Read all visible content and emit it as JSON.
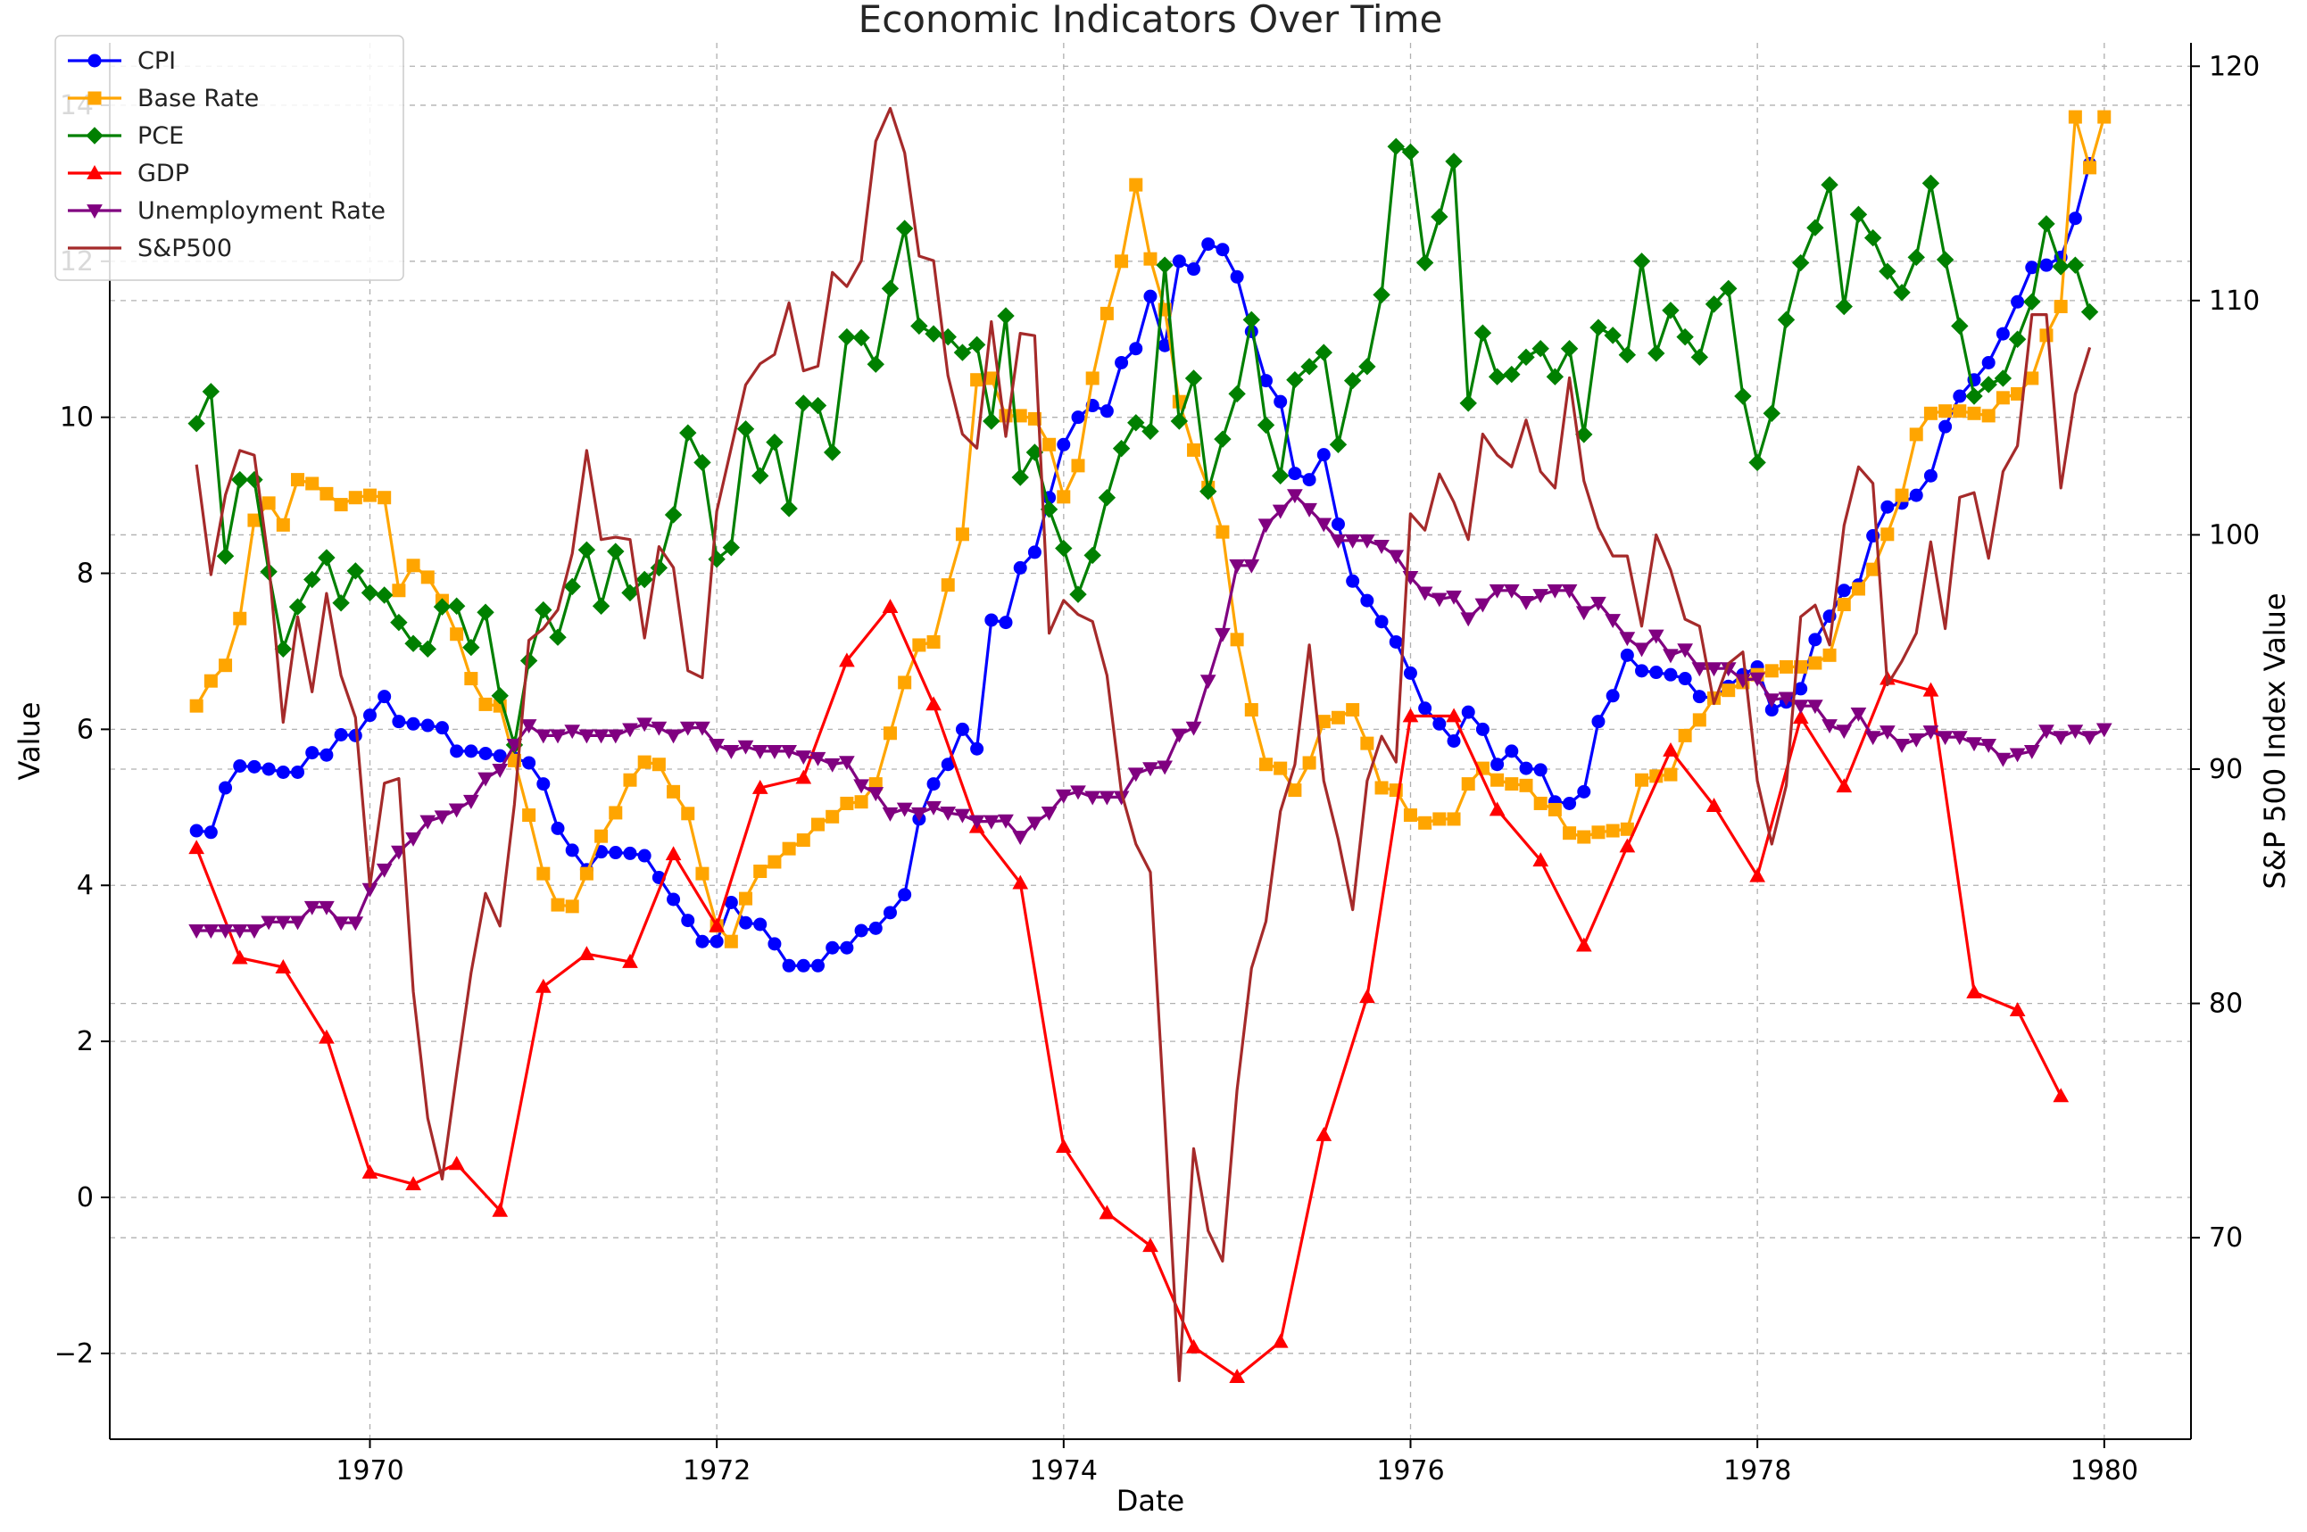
{
  "chart_data": {
    "type": "line",
    "title": "Economic Indicators Over Time",
    "xlabel": "Date",
    "ylabel": "Value",
    "y2label": "S&P 500 Index Value",
    "xlim": [
      1968.5,
      1980.5
    ],
    "ylim": [
      -3.1,
      14.8
    ],
    "y2lim": [
      61.4,
      121
    ],
    "x_ticks": [
      1970,
      1972,
      1974,
      1976,
      1978,
      1980
    ],
    "x_tick_labels": [
      "1970",
      "1972",
      "1974",
      "1976",
      "1978",
      "1980"
    ],
    "y_ticks": [
      -2,
      0,
      2,
      4,
      6,
      8,
      10,
      12,
      14
    ],
    "y_tick_labels": [
      "−2",
      "0",
      "2",
      "4",
      "6",
      "8",
      "10",
      "12",
      "14"
    ],
    "y2_ticks": [
      70,
      80,
      90,
      100,
      110,
      120
    ],
    "y2_tick_labels": [
      "70",
      "80",
      "90",
      "100",
      "110",
      "120"
    ],
    "grid": true,
    "legend_position": "top-left",
    "series": [
      {
        "name": "CPI",
        "color": "#0000ff",
        "marker": "circle",
        "axis": "left",
        "x_start": 1969.0,
        "x_step": 0.08333,
        "values": [
          4.7,
          4.68,
          5.25,
          5.53,
          5.52,
          5.49,
          5.45,
          5.45,
          5.7,
          5.67,
          5.93,
          5.92,
          6.18,
          6.42,
          6.1,
          6.07,
          6.05,
          6.02,
          5.72,
          5.72,
          5.69,
          5.66,
          5.63,
          5.57,
          5.3,
          4.73,
          4.45,
          4.2,
          4.43,
          4.42,
          4.41,
          4.38,
          4.1,
          3.82,
          3.55,
          3.28,
          3.28,
          3.78,
          3.52,
          3.5,
          3.25,
          2.97,
          2.97,
          2.97,
          3.2,
          3.2,
          3.42,
          3.45,
          3.65,
          3.88,
          4.85,
          5.3,
          5.55,
          6.0,
          5.75,
          7.4,
          7.37,
          8.07,
          8.27,
          8.97,
          9.65,
          10.0,
          10.15,
          10.08,
          10.7,
          10.88,
          11.55,
          10.92,
          12.0,
          11.9,
          12.22,
          12.15,
          11.8,
          11.1,
          10.47,
          10.2,
          9.28,
          9.2,
          9.52,
          8.63,
          7.9,
          7.65,
          7.38,
          7.12,
          6.72,
          6.27,
          6.07,
          5.85,
          6.22,
          6.0,
          5.55,
          5.72,
          5.5,
          5.48,
          5.07,
          5.05,
          5.2,
          6.1,
          6.43,
          6.95,
          6.75,
          6.73,
          6.7,
          6.65,
          6.42,
          6.4,
          6.55,
          6.7,
          6.8,
          6.25,
          6.35,
          6.52,
          7.15,
          7.45,
          7.78,
          7.85,
          8.48,
          8.85,
          8.9,
          9.0,
          9.25,
          9.88,
          10.27,
          10.48,
          10.7,
          11.07,
          11.48,
          11.92,
          11.95,
          12.05,
          12.55,
          13.25
        ]
      },
      {
        "name": "Base Rate",
        "color": "#ffa500",
        "marker": "square",
        "axis": "left",
        "x_start": 1969.0,
        "x_step": 0.08333,
        "values": [
          6.3,
          6.62,
          6.82,
          7.42,
          8.68,
          8.9,
          8.62,
          9.2,
          9.15,
          9.02,
          8.88,
          8.97,
          9.0,
          8.97,
          7.78,
          8.1,
          7.95,
          7.65,
          7.22,
          6.65,
          6.32,
          6.3,
          5.6,
          4.9,
          4.15,
          3.75,
          3.73,
          4.15,
          4.63,
          4.93,
          5.35,
          5.58,
          5.55,
          5.2,
          4.92,
          4.15,
          3.48,
          3.28,
          3.83,
          4.18,
          4.3,
          4.47,
          4.58,
          4.78,
          4.88,
          5.05,
          5.07,
          5.3,
          5.95,
          6.6,
          7.08,
          7.12,
          7.85,
          8.5,
          10.48,
          10.5,
          10.02,
          10.02,
          9.98,
          9.65,
          8.98,
          9.38,
          10.5,
          11.33,
          12.0,
          12.98,
          12.03,
          11.38,
          10.2,
          9.58,
          9.1,
          8.53,
          7.15,
          6.25,
          5.55,
          5.5,
          5.22,
          5.57,
          6.1,
          6.15,
          6.25,
          5.82,
          5.25,
          5.22,
          4.9,
          4.8,
          4.85,
          4.85,
          5.3,
          5.5,
          5.35,
          5.3,
          5.28,
          5.05,
          4.97,
          4.67,
          4.62,
          4.68,
          4.7,
          4.72,
          5.35,
          5.4,
          5.42,
          5.92,
          6.12,
          6.4,
          6.5,
          6.6,
          6.7,
          6.75,
          6.8,
          6.8,
          6.85,
          6.95,
          7.6,
          7.8,
          8.05,
          8.5,
          9.0,
          9.78,
          10.05,
          10.08,
          10.08,
          10.05,
          10.02,
          10.25,
          10.3,
          10.5,
          11.05,
          11.42,
          13.85,
          13.2,
          13.85
        ]
      },
      {
        "name": "PCE",
        "color": "#008000",
        "marker": "diamond",
        "axis": "left",
        "x_start": 1969.0,
        "x_step": 0.08333,
        "values": [
          9.92,
          10.33,
          8.22,
          9.2,
          9.2,
          8.02,
          7.03,
          7.57,
          7.92,
          8.2,
          7.62,
          8.03,
          7.75,
          7.72,
          7.37,
          7.1,
          7.03,
          7.57,
          7.58,
          7.05,
          7.5,
          6.43,
          5.8,
          6.88,
          7.53,
          7.18,
          7.83,
          8.3,
          7.58,
          8.28,
          7.75,
          7.92,
          8.07,
          8.75,
          9.8,
          9.42,
          8.18,
          8.33,
          9.85,
          9.25,
          9.68,
          8.83,
          10.18,
          10.15,
          9.55,
          11.03,
          11.02,
          10.68,
          11.65,
          12.42,
          11.17,
          11.07,
          11.03,
          10.83,
          10.93,
          9.95,
          11.3,
          9.23,
          9.55,
          8.82,
          8.32,
          7.73,
          8.23,
          8.97,
          9.6,
          9.93,
          9.82,
          11.95,
          9.95,
          10.5,
          9.05,
          9.72,
          10.3,
          11.25,
          9.9,
          9.25,
          10.48,
          10.65,
          10.83,
          9.65,
          10.47,
          10.65,
          11.57,
          13.47,
          13.4,
          11.98,
          12.57,
          13.28,
          10.18,
          11.08,
          10.52,
          10.55,
          10.77,
          10.88,
          10.52,
          10.88,
          9.78,
          11.15,
          11.05,
          10.8,
          12.0,
          10.82,
          11.37,
          11.03,
          10.77,
          11.45,
          11.65,
          10.27,
          9.42,
          10.05,
          11.25,
          11.98,
          12.43,
          12.98,
          11.42,
          12.6,
          12.3,
          11.87,
          11.6,
          12.05,
          13.0,
          12.02,
          11.17,
          10.27,
          10.42,
          10.5,
          11.0,
          11.48,
          12.48,
          11.93,
          11.95,
          11.35
        ]
      },
      {
        "name": "GDP",
        "color": "#ff0000",
        "marker": "triangle-up",
        "axis": "left",
        "x": [
          1969.0,
          1969.25,
          1969.5,
          1969.75,
          1970.0,
          1970.25,
          1970.5,
          1970.75,
          1971.0,
          1971.25,
          1971.5,
          1971.75,
          1972.0,
          1972.25,
          1972.5,
          1972.75,
          1973.0,
          1973.25,
          1973.5,
          1973.75,
          1974.0,
          1974.25,
          1974.5,
          1974.75,
          1975.0,
          1975.25,
          1975.5,
          1975.75,
          1976.0,
          1976.25,
          1976.5,
          1976.75,
          1977.0,
          1977.25,
          1977.5,
          1977.75,
          1978.0,
          1978.25,
          1978.5,
          1978.75,
          1979.0,
          1979.25,
          1979.5,
          1979.75
        ],
        "y": [
          4.48,
          3.07,
          2.95,
          2.05,
          0.32,
          0.17,
          0.43,
          -0.17,
          2.7,
          3.12,
          3.02,
          4.4,
          3.48,
          5.25,
          5.38,
          6.88,
          7.57,
          6.32,
          4.75,
          4.03,
          0.65,
          -0.2,
          -0.62,
          -1.92,
          -2.3,
          -1.85,
          0.8,
          2.57,
          6.17,
          6.17,
          4.97,
          4.32,
          3.23,
          4.5,
          5.73,
          5.02,
          4.12,
          6.15,
          5.27,
          6.65,
          6.5,
          2.63,
          2.4,
          1.3
        ]
      },
      {
        "name": "Unemployment Rate",
        "color": "#800080",
        "marker": "triangle-down",
        "axis": "left",
        "x_start": 1969.0,
        "x_step": 0.08333,
        "values": [
          3.42,
          3.42,
          3.42,
          3.42,
          3.42,
          3.53,
          3.53,
          3.53,
          3.72,
          3.72,
          3.52,
          3.52,
          3.95,
          4.2,
          4.43,
          4.6,
          4.82,
          4.88,
          4.97,
          5.08,
          5.37,
          5.48,
          5.8,
          6.05,
          5.92,
          5.92,
          5.98,
          5.92,
          5.92,
          5.92,
          6.0,
          6.07,
          6.02,
          5.92,
          6.02,
          6.02,
          5.8,
          5.72,
          5.78,
          5.72,
          5.72,
          5.72,
          5.65,
          5.63,
          5.55,
          5.58,
          5.28,
          5.18,
          4.92,
          4.98,
          4.92,
          5.0,
          4.93,
          4.9,
          4.82,
          4.82,
          4.83,
          4.62,
          4.8,
          4.93,
          5.15,
          5.2,
          5.13,
          5.13,
          5.13,
          5.43,
          5.5,
          5.52,
          5.93,
          6.02,
          6.62,
          7.22,
          8.1,
          8.1,
          8.62,
          8.8,
          9.0,
          8.82,
          8.63,
          8.42,
          8.42,
          8.42,
          8.35,
          8.22,
          7.95,
          7.75,
          7.67,
          7.7,
          7.42,
          7.6,
          7.78,
          7.78,
          7.63,
          7.72,
          7.78,
          7.78,
          7.5,
          7.62,
          7.4,
          7.17,
          7.03,
          7.2,
          6.95,
          7.02,
          6.78,
          6.78,
          6.78,
          6.63,
          6.65,
          6.38,
          6.4,
          6.3,
          6.3,
          6.05,
          5.98,
          6.2,
          5.9,
          5.97,
          5.8,
          5.87,
          5.97,
          5.9,
          5.9,
          5.82,
          5.8,
          5.62,
          5.68,
          5.72,
          5.98,
          5.9,
          5.98,
          5.9,
          6.0
        ]
      },
      {
        "name": "S&P500",
        "color": "#a52a2a",
        "marker": "none",
        "axis": "right",
        "x_start": 1969.0,
        "x_step": 0.08333,
        "values": [
          103.0,
          98.3,
          101.7,
          103.6,
          103.4,
          98.8,
          92.0,
          96.5,
          93.3,
          97.5,
          94.0,
          92.2,
          85.0,
          89.4,
          89.6,
          80.5,
          75.1,
          72.5,
          77.0,
          81.3,
          84.7,
          83.3,
          88.5,
          95.5,
          96.0,
          96.8,
          99.2,
          103.6,
          99.8,
          99.9,
          99.8,
          95.6,
          99.5,
          98.6,
          94.2,
          93.9,
          101.0,
          103.7,
          106.4,
          107.3,
          107.7,
          109.9,
          107.0,
          107.2,
          111.2,
          110.6,
          111.7,
          116.8,
          118.2,
          116.3,
          111.9,
          111.7,
          106.8,
          104.3,
          103.7,
          109.1,
          104.2,
          108.6,
          108.5,
          95.8,
          97.2,
          96.6,
          96.3,
          94.0,
          89.0,
          86.8,
          85.6,
          75.0,
          63.9,
          73.8,
          70.3,
          69.0,
          76.3,
          81.5,
          83.5,
          88.2,
          90.2,
          95.3,
          89.5,
          87.0,
          84.0,
          89.5,
          91.4,
          90.3,
          100.9,
          100.2,
          102.6,
          101.4,
          99.8,
          104.3,
          103.4,
          102.9,
          104.9,
          102.7,
          102.0,
          106.7,
          102.3,
          100.3,
          99.1,
          99.1,
          96.1,
          100.0,
          98.5,
          96.4,
          96.1,
          92.8,
          94.5,
          95.0,
          89.5,
          86.8,
          89.3,
          96.5,
          97.0,
          95.3,
          100.4,
          102.9,
          102.2,
          93.6,
          94.6,
          95.8,
          99.7,
          96.0,
          101.6,
          101.8,
          99.0,
          102.7,
          103.8,
          109.4,
          109.4,
          102.0,
          106.0,
          108.0
        ]
      }
    ]
  }
}
